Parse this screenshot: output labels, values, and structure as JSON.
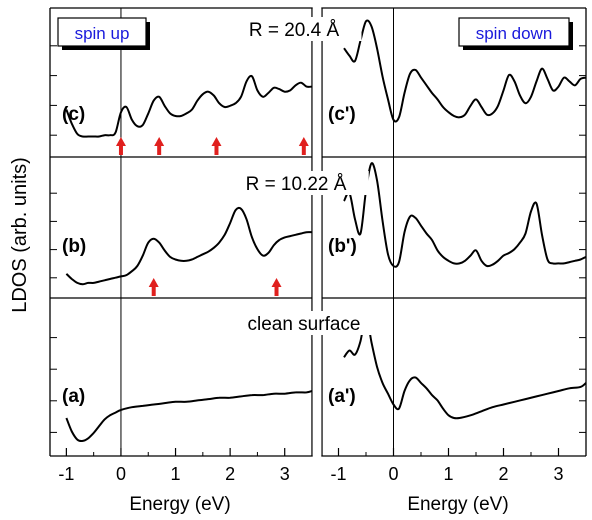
{
  "chart_data": {
    "type": "line",
    "ylabel": "LDOS (arb. units)",
    "xlabel": "Energy (eV)",
    "xlim": [
      -1.3,
      3.5
    ],
    "x_ticks": [
      -1,
      0,
      1,
      2,
      3
    ],
    "x_tick_labels": [
      "-1",
      "0",
      "1",
      "2",
      "3"
    ],
    "spin_labels": {
      "up": "spin up",
      "down": "spin down"
    },
    "row_labels": [
      "R = 20.4 Å",
      "R = 10.22 Å",
      "clean surface"
    ],
    "grid": false,
    "legend": "none",
    "colors": {
      "curve": "#000000",
      "arrow": "#e0201e",
      "badge_text": "#1a1adc"
    },
    "panels": [
      {
        "label": "(c)",
        "spin": "up",
        "row": 0,
        "x": [
          -1.0,
          -0.9,
          -0.8,
          -0.7,
          -0.6,
          -0.5,
          -0.4,
          -0.3,
          -0.2,
          -0.1,
          0.0,
          0.1,
          0.2,
          0.3,
          0.4,
          0.5,
          0.6,
          0.7,
          0.8,
          0.9,
          1.0,
          1.1,
          1.2,
          1.3,
          1.4,
          1.5,
          1.6,
          1.7,
          1.8,
          1.9,
          2.0,
          2.1,
          2.2,
          2.3,
          2.4,
          2.5,
          2.6,
          2.7,
          2.8,
          2.9,
          3.0,
          3.1,
          3.2,
          3.3,
          3.4,
          3.5
        ],
        "y": [
          0.3,
          0.19,
          0.11,
          0.09,
          0.09,
          0.09,
          0.09,
          0.1,
          0.1,
          0.12,
          0.28,
          0.32,
          0.22,
          0.17,
          0.18,
          0.27,
          0.37,
          0.4,
          0.33,
          0.27,
          0.25,
          0.25,
          0.27,
          0.3,
          0.37,
          0.42,
          0.44,
          0.41,
          0.35,
          0.32,
          0.33,
          0.35,
          0.4,
          0.52,
          0.56,
          0.45,
          0.4,
          0.43,
          0.47,
          0.46,
          0.44,
          0.45,
          0.49,
          0.51,
          0.48,
          0.48
        ],
        "ylim": [
          0,
          1
        ],
        "arrows_x": [
          0.0,
          0.7,
          1.75,
          3.35
        ]
      },
      {
        "label": "(c')",
        "spin": "down",
        "row": 0,
        "x": [
          -0.9,
          -0.8,
          -0.7,
          -0.6,
          -0.5,
          -0.4,
          -0.3,
          -0.2,
          -0.1,
          0.0,
          0.1,
          0.2,
          0.3,
          0.4,
          0.5,
          0.6,
          0.7,
          0.8,
          0.9,
          1.0,
          1.1,
          1.2,
          1.3,
          1.4,
          1.5,
          1.6,
          1.7,
          1.8,
          1.9,
          2.0,
          2.1,
          2.2,
          2.3,
          2.4,
          2.5,
          2.6,
          2.7,
          2.8,
          2.9,
          3.0,
          3.1,
          3.2,
          3.3,
          3.4,
          3.5
        ],
        "y": [
          0.78,
          0.72,
          0.68,
          0.84,
          0.99,
          0.95,
          0.78,
          0.56,
          0.38,
          0.22,
          0.24,
          0.43,
          0.58,
          0.61,
          0.55,
          0.49,
          0.43,
          0.38,
          0.32,
          0.28,
          0.25,
          0.24,
          0.26,
          0.33,
          0.38,
          0.32,
          0.26,
          0.27,
          0.33,
          0.45,
          0.57,
          0.52,
          0.41,
          0.35,
          0.4,
          0.52,
          0.62,
          0.54,
          0.45,
          0.48,
          0.55,
          0.52,
          0.49,
          0.54,
          0.55
        ],
        "ylim": [
          0,
          1
        ]
      },
      {
        "label": "(b)",
        "spin": "up",
        "row": 1,
        "x": [
          -1.0,
          -0.9,
          -0.8,
          -0.7,
          -0.6,
          -0.5,
          -0.4,
          -0.3,
          -0.2,
          -0.1,
          0.0,
          0.1,
          0.2,
          0.3,
          0.4,
          0.5,
          0.6,
          0.7,
          0.8,
          0.9,
          1.0,
          1.1,
          1.2,
          1.3,
          1.4,
          1.5,
          1.6,
          1.7,
          1.8,
          1.9,
          2.0,
          2.1,
          2.2,
          2.3,
          2.4,
          2.5,
          2.6,
          2.7,
          2.8,
          2.9,
          3.0,
          3.1,
          3.2,
          3.3,
          3.4,
          3.5
        ],
        "y": [
          0.14,
          0.1,
          0.07,
          0.06,
          0.07,
          0.07,
          0.08,
          0.09,
          0.1,
          0.11,
          0.12,
          0.13,
          0.16,
          0.2,
          0.28,
          0.38,
          0.41,
          0.38,
          0.32,
          0.27,
          0.25,
          0.24,
          0.24,
          0.25,
          0.27,
          0.29,
          0.31,
          0.34,
          0.38,
          0.44,
          0.53,
          0.63,
          0.64,
          0.56,
          0.42,
          0.33,
          0.28,
          0.3,
          0.36,
          0.4,
          0.42,
          0.43,
          0.44,
          0.45,
          0.46,
          0.46
        ],
        "ylim": [
          0,
          1
        ],
        "arrows_x": [
          0.6,
          2.85
        ]
      },
      {
        "label": "(b')",
        "spin": "down",
        "row": 1,
        "x": [
          -0.9,
          -0.8,
          -0.7,
          -0.6,
          -0.5,
          -0.4,
          -0.3,
          -0.2,
          -0.1,
          0.0,
          0.1,
          0.2,
          0.3,
          0.4,
          0.5,
          0.6,
          0.7,
          0.8,
          0.9,
          1.0,
          1.1,
          1.2,
          1.3,
          1.4,
          1.5,
          1.6,
          1.7,
          1.8,
          1.9,
          2.0,
          2.1,
          2.2,
          2.3,
          2.4,
          2.5,
          2.6,
          2.7,
          2.8,
          2.9,
          3.0,
          3.1,
          3.2,
          3.3,
          3.4,
          3.5
        ],
        "y": [
          0.7,
          0.76,
          0.56,
          0.45,
          0.78,
          0.99,
          0.86,
          0.55,
          0.29,
          0.2,
          0.23,
          0.46,
          0.58,
          0.57,
          0.51,
          0.45,
          0.4,
          0.32,
          0.27,
          0.24,
          0.22,
          0.22,
          0.24,
          0.28,
          0.32,
          0.24,
          0.2,
          0.21,
          0.24,
          0.28,
          0.3,
          0.33,
          0.38,
          0.45,
          0.62,
          0.68,
          0.44,
          0.25,
          0.22,
          0.22,
          0.22,
          0.23,
          0.24,
          0.25,
          0.27
        ],
        "ylim": [
          0,
          1
        ]
      },
      {
        "label": "(a)",
        "spin": "up",
        "row": 2,
        "x": [
          -1.0,
          -0.9,
          -0.8,
          -0.7,
          -0.6,
          -0.5,
          -0.4,
          -0.3,
          -0.2,
          -0.1,
          0.0,
          0.2,
          0.4,
          0.6,
          0.8,
          1.0,
          1.2,
          1.4,
          1.6,
          1.8,
          2.0,
          2.2,
          2.4,
          2.6,
          2.8,
          3.0,
          3.2,
          3.4,
          3.5
        ],
        "y": [
          0.2,
          0.1,
          0.04,
          0.03,
          0.05,
          0.09,
          0.14,
          0.19,
          0.22,
          0.24,
          0.26,
          0.28,
          0.29,
          0.3,
          0.31,
          0.32,
          0.32,
          0.33,
          0.34,
          0.35,
          0.35,
          0.36,
          0.37,
          0.37,
          0.38,
          0.38,
          0.39,
          0.39,
          0.4
        ],
        "ylim": [
          0,
          1
        ]
      },
      {
        "label": "(a')",
        "spin": "down",
        "row": 2,
        "x": [
          -0.9,
          -0.8,
          -0.7,
          -0.6,
          -0.5,
          -0.4,
          -0.3,
          -0.2,
          -0.1,
          0.0,
          0.1,
          0.2,
          0.3,
          0.4,
          0.5,
          0.6,
          0.7,
          0.8,
          0.9,
          1.0,
          1.1,
          1.2,
          1.4,
          1.6,
          1.8,
          2.0,
          2.2,
          2.4,
          2.6,
          2.8,
          3.0,
          3.2,
          3.4,
          3.5
        ],
        "y": [
          0.65,
          0.7,
          0.67,
          0.77,
          0.96,
          0.76,
          0.58,
          0.46,
          0.38,
          0.3,
          0.27,
          0.4,
          0.48,
          0.5,
          0.46,
          0.42,
          0.37,
          0.33,
          0.27,
          0.22,
          0.2,
          0.2,
          0.22,
          0.25,
          0.28,
          0.3,
          0.32,
          0.34,
          0.36,
          0.38,
          0.4,
          0.42,
          0.43,
          0.46
        ],
        "ylim": [
          0,
          1
        ]
      }
    ]
  }
}
